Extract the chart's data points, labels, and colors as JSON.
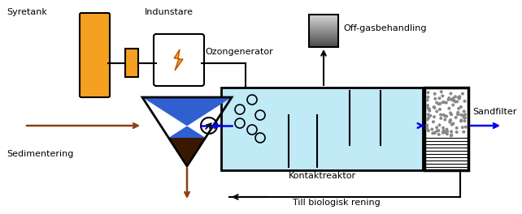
{
  "labels": {
    "syretank": "Syretank",
    "indunstare": "Indunstare",
    "ozongenerator": "Ozongenerator",
    "offgas": "Off-gasbehandling",
    "sedimentering": "Sedimentering",
    "kontaktreaktor": "Kontaktreaktor",
    "sandfilter": "Sandfilter",
    "till_biologisk": "Till biologisk rening"
  },
  "colors": {
    "orange": "#F5A020",
    "blue_fill": "#3060D0",
    "cyan_fill": "#C0EAF5",
    "black": "#000000",
    "brown": "#8B4010",
    "dark_brown": "#3A1800",
    "white": "#FFFFFF",
    "arrow_blue": "#0000EE",
    "lgray": "#C0C0C0",
    "dgray": "#606060"
  },
  "figsize": [
    6.42,
    2.64
  ],
  "dpi": 100
}
